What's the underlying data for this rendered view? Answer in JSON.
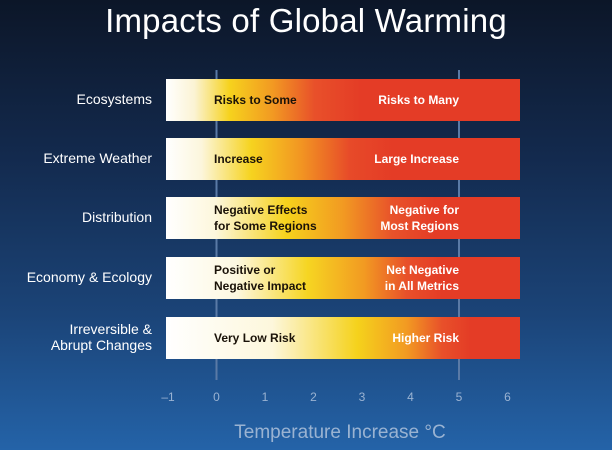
{
  "chart_data": {
    "type": "bar",
    "title": "Impacts of Global Warming",
    "xlabel": "Temperature Increase °C",
    "xlim": [
      -1,
      6
    ],
    "ticks": [
      "–1",
      "0",
      "1",
      "2",
      "3",
      "4",
      "5",
      "6"
    ],
    "tick_values": [
      -1,
      0,
      1,
      2,
      3,
      4,
      5,
      6
    ],
    "gridlines_at": [
      0,
      5
    ],
    "colors": {
      "white": "#ffffff",
      "yellow": "#f5d21e",
      "orange": "#f29a22",
      "red": "#e43c26"
    },
    "rows": [
      {
        "category": "Ecosystems",
        "low_label": [
          "Risks to Some"
        ],
        "high_label": [
          "Risks to Many"
        ],
        "gradient": [
          [
            "0%",
            "#ffffff"
          ],
          [
            "8%",
            "#fbf3d4"
          ],
          [
            "18%",
            "#f6d21d"
          ],
          [
            "30%",
            "#f29a22"
          ],
          [
            "42%",
            "#e8502a"
          ],
          [
            "55%",
            "#e43c26"
          ],
          [
            "100%",
            "#e43c26"
          ]
        ]
      },
      {
        "category": "Extreme Weather",
        "low_label": [
          "Increase"
        ],
        "high_label": [
          "Large Increase"
        ],
        "gradient": [
          [
            "0%",
            "#ffffff"
          ],
          [
            "10%",
            "#fcf6dc"
          ],
          [
            "24%",
            "#f6d31f"
          ],
          [
            "38%",
            "#f29622"
          ],
          [
            "52%",
            "#e74a29"
          ],
          [
            "64%",
            "#e43c26"
          ],
          [
            "100%",
            "#e43c26"
          ]
        ]
      },
      {
        "category": "Distribution",
        "low_label": [
          "Negative Effects",
          "for Some Regions"
        ],
        "high_label": [
          "Negative for",
          "Most Regions"
        ],
        "gradient": [
          [
            "0%",
            "#ffffff"
          ],
          [
            "14%",
            "#fdf7dc"
          ],
          [
            "34%",
            "#f5d21c"
          ],
          [
            "50%",
            "#f29a22"
          ],
          [
            "64%",
            "#e8522a"
          ],
          [
            "76%",
            "#e43c26"
          ],
          [
            "100%",
            "#e43c26"
          ]
        ]
      },
      {
        "category": "Economy & Ecology",
        "low_label": [
          "Positive or",
          "Negative Impact"
        ],
        "high_label": [
          "Net Negative",
          "in All Metrics"
        ],
        "gradient": [
          [
            "0%",
            "#ffffff"
          ],
          [
            "20%",
            "#fdf8e0"
          ],
          [
            "40%",
            "#f6d522"
          ],
          [
            "56%",
            "#f29a22"
          ],
          [
            "68%",
            "#e8502a"
          ],
          [
            "78%",
            "#e43c26"
          ],
          [
            "100%",
            "#e43c26"
          ]
        ]
      },
      {
        "category": [
          "Irreversible &",
          "Abrupt  Changes"
        ],
        "low_label": [
          "Very Low Risk"
        ],
        "high_label": [
          "Higher Risk"
        ],
        "gradient": [
          [
            "0%",
            "#ffffff"
          ],
          [
            "30%",
            "#fdf7dc"
          ],
          [
            "54%",
            "#f5d21c"
          ],
          [
            "68%",
            "#f29a22"
          ],
          [
            "78%",
            "#e8502a"
          ],
          [
            "86%",
            "#e43c26"
          ],
          [
            "100%",
            "#e43c26"
          ]
        ]
      }
    ]
  }
}
